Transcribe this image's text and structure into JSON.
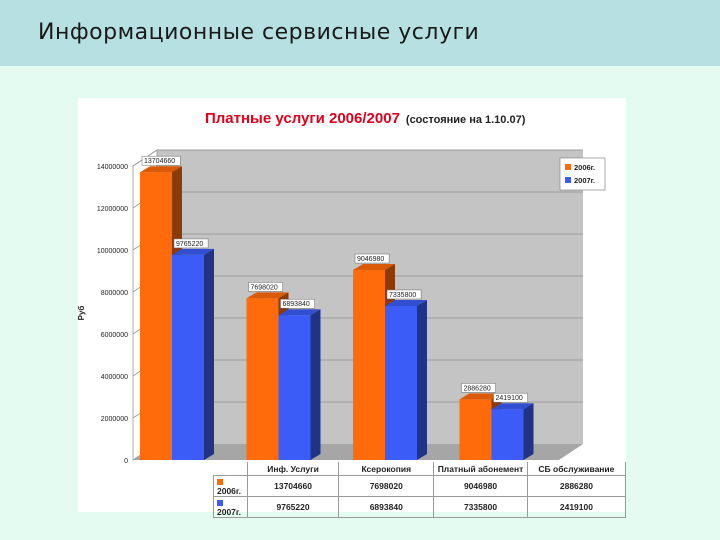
{
  "page": {
    "title": "Информационные сервисные услуги"
  },
  "colors": {
    "s2006": "#ff6a0b",
    "s2007": "#3b5cf6",
    "title": "#e2001a"
  },
  "chart_data": {
    "type": "bar",
    "title": "Платные услуги 2006/2007",
    "subtitle": "(состояние на 1.10.07)",
    "ylabel": "Руб",
    "ylim": [
      0,
      14000000
    ],
    "yticks": [
      "14000000",
      "12000000",
      "10000000",
      "8000000",
      "6000000",
      "4000000",
      "2000000",
      "0"
    ],
    "categories": [
      "Инф. Услуги",
      "Ксерокопия",
      "Платный абонемент",
      "СБ обслуживание"
    ],
    "series": [
      {
        "name": "2006г.",
        "values": [
          13704660,
          7698020,
          9046980,
          2886280
        ],
        "labels": [
          "13704660",
          "7698020",
          "9046980",
          "2886280"
        ]
      },
      {
        "name": "2007г.",
        "values": [
          9765220,
          6893840,
          7335800,
          2419100
        ],
        "labels": [
          "9765220",
          "6893840",
          "7335800",
          "2419100"
        ]
      }
    ],
    "legend": "top-right",
    "grid": true
  }
}
